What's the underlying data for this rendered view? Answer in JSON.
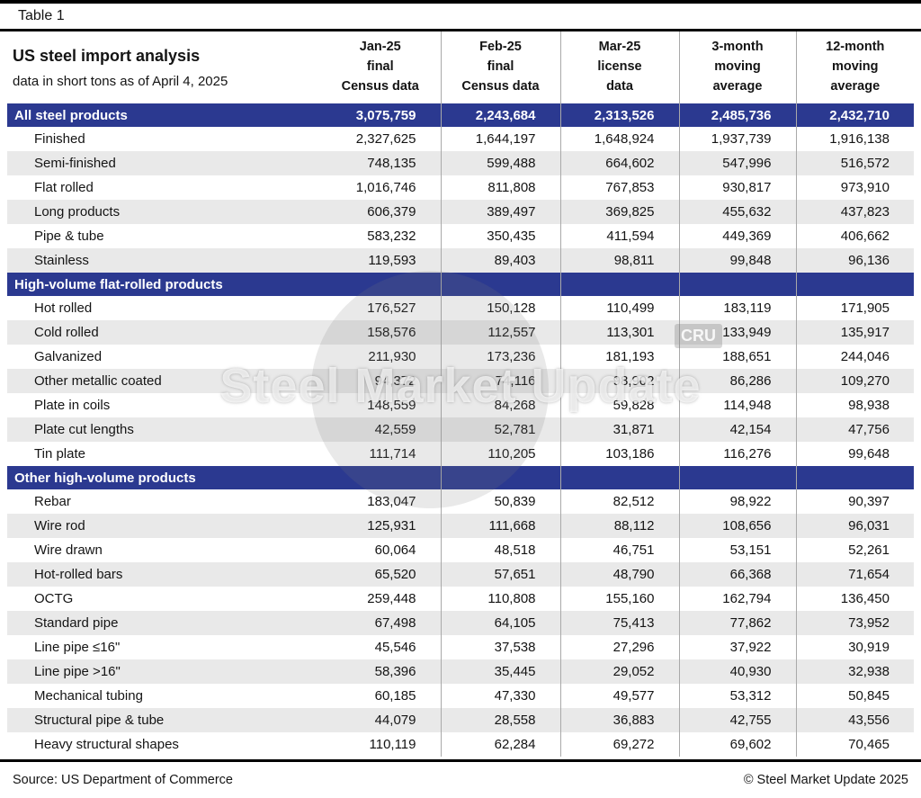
{
  "page": {
    "table_label": "Table 1",
    "source": "Source: US Department of Commerce",
    "copyright": "© Steel Market Update 2025",
    "watermark": "Steel Market Update",
    "watermark_badge": "CRU"
  },
  "colors": {
    "section_bg": "#2b3990",
    "row_alt": "#e9e9e9",
    "rule": "#000000",
    "separator": "#a9a9a9"
  },
  "chart_data": {
    "type": "table",
    "title": "US steel import analysis",
    "subtitle": "data in short tons as of April 4, 2025",
    "columns": [
      [
        "Jan-25",
        "final",
        "Census data"
      ],
      [
        "Feb-25",
        "final",
        "Census data"
      ],
      [
        "Mar-25",
        "license",
        "data"
      ],
      [
        "3-month",
        "moving",
        "average"
      ],
      [
        "12-month",
        "moving",
        "average"
      ]
    ],
    "sections": [
      {
        "header": "All steel products",
        "values": [
          "3,075,759",
          "2,243,684",
          "2,313,526",
          "2,485,736",
          "2,432,710"
        ],
        "rows": [
          {
            "label": "Finished",
            "values": [
              "2,327,625",
              "1,644,197",
              "1,648,924",
              "1,937,739",
              "1,916,138"
            ]
          },
          {
            "label": "Semi-finished",
            "values": [
              "748,135",
              "599,488",
              "664,602",
              "547,996",
              "516,572"
            ]
          },
          {
            "label": "Flat rolled",
            "values": [
              "1,016,746",
              "811,808",
              "767,853",
              "930,817",
              "973,910"
            ]
          },
          {
            "label": "Long products",
            "values": [
              "606,379",
              "389,497",
              "369,825",
              "455,632",
              "437,823"
            ]
          },
          {
            "label": "Pipe & tube",
            "values": [
              "583,232",
              "350,435",
              "411,594",
              "449,369",
              "406,662"
            ]
          },
          {
            "label": "Stainless",
            "values": [
              "119,593",
              "89,403",
              "98,811",
              "99,848",
              "96,136"
            ]
          }
        ]
      },
      {
        "header": "High-volume flat-rolled products",
        "values": null,
        "rows": [
          {
            "label": "Hot rolled",
            "values": [
              "176,527",
              "150,128",
              "110,499",
              "183,119",
              "171,905"
            ]
          },
          {
            "label": "Cold rolled",
            "values": [
              "158,576",
              "112,557",
              "113,301",
              "133,949",
              "135,917"
            ]
          },
          {
            "label": "Galvanized",
            "values": [
              "211,930",
              "173,236",
              "181,193",
              "188,651",
              "244,046"
            ]
          },
          {
            "label": "Other metallic coated",
            "values": [
              "94,372",
              "74,116",
              "98,902",
              "86,286",
              "109,270"
            ]
          },
          {
            "label": "Plate in coils",
            "values": [
              "148,559",
              "84,268",
              "59,828",
              "114,948",
              "98,938"
            ]
          },
          {
            "label": "Plate cut lengths",
            "values": [
              "42,559",
              "52,781",
              "31,871",
              "42,154",
              "47,756"
            ]
          },
          {
            "label": "Tin plate",
            "values": [
              "111,714",
              "110,205",
              "103,186",
              "116,276",
              "99,648"
            ]
          }
        ]
      },
      {
        "header": "Other high-volume products",
        "values": null,
        "rows": [
          {
            "label": "Rebar",
            "values": [
              "183,047",
              "50,839",
              "82,512",
              "98,922",
              "90,397"
            ]
          },
          {
            "label": "Wire rod",
            "values": [
              "125,931",
              "111,668",
              "88,112",
              "108,656",
              "96,031"
            ]
          },
          {
            "label": "Wire drawn",
            "values": [
              "60,064",
              "48,518",
              "46,751",
              "53,151",
              "52,261"
            ]
          },
          {
            "label": "Hot-rolled bars",
            "values": [
              "65,520",
              "57,651",
              "48,790",
              "66,368",
              "71,654"
            ]
          },
          {
            "label": "OCTG",
            "values": [
              "259,448",
              "110,808",
              "155,160",
              "162,794",
              "136,450"
            ]
          },
          {
            "label": "Standard pipe",
            "values": [
              "67,498",
              "64,105",
              "75,413",
              "77,862",
              "73,952"
            ]
          },
          {
            "label": "Line pipe ≤16\"",
            "values": [
              "45,546",
              "37,538",
              "27,296",
              "37,922",
              "30,919"
            ]
          },
          {
            "label": "Line pipe >16\"",
            "values": [
              "58,396",
              "35,445",
              "29,052",
              "40,930",
              "32,938"
            ]
          },
          {
            "label": "Mechanical tubing",
            "values": [
              "60,185",
              "47,330",
              "49,577",
              "53,312",
              "50,845"
            ]
          },
          {
            "label": "Structural pipe & tube",
            "values": [
              "44,079",
              "28,558",
              "36,883",
              "42,755",
              "43,556"
            ]
          },
          {
            "label": "Heavy structural shapes",
            "values": [
              "110,119",
              "62,284",
              "69,272",
              "69,602",
              "70,465"
            ]
          }
        ]
      }
    ]
  }
}
